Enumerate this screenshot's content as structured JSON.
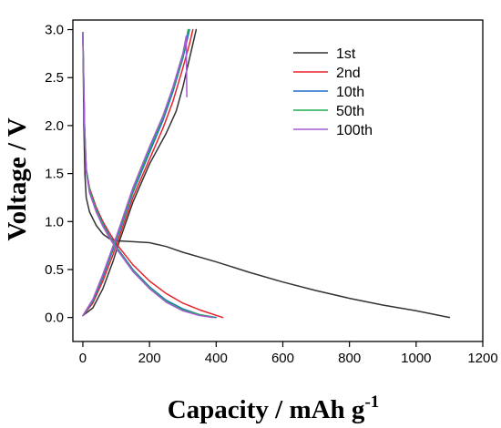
{
  "chart_data": {
    "type": "line",
    "xlabel": "Capacity / mAh g",
    "xlabel_sup": "-1",
    "ylabel": "Voltage / V",
    "xlim": [
      -30,
      1200
    ],
    "ylim": [
      -0.25,
      3.1
    ],
    "x_ticks": [
      0,
      200,
      400,
      600,
      800,
      1000,
      1200
    ],
    "y_ticks": [
      0.0,
      0.5,
      1.0,
      1.5,
      2.0,
      2.5,
      3.0
    ],
    "y_tick_labels": [
      "0.0",
      "0.5",
      "1.0",
      "1.5",
      "2.0",
      "2.5",
      "3.0"
    ],
    "grid": false,
    "legend_position": "top-right",
    "series": [
      {
        "name": "1st",
        "color": "#333333",
        "discharge": [
          [
            0,
            2.97
          ],
          [
            3,
            2.0
          ],
          [
            6,
            1.5
          ],
          [
            10,
            1.25
          ],
          [
            20,
            1.1
          ],
          [
            40,
            0.96
          ],
          [
            60,
            0.87
          ],
          [
            80,
            0.82
          ],
          [
            100,
            0.8
          ],
          [
            150,
            0.79
          ],
          [
            200,
            0.78
          ],
          [
            250,
            0.74
          ],
          [
            300,
            0.68
          ],
          [
            400,
            0.58
          ],
          [
            500,
            0.47
          ],
          [
            600,
            0.37
          ],
          [
            700,
            0.28
          ],
          [
            800,
            0.2
          ],
          [
            900,
            0.13
          ],
          [
            1000,
            0.07
          ],
          [
            1100,
            0.0
          ]
        ],
        "charge": [
          [
            0,
            0.02
          ],
          [
            30,
            0.1
          ],
          [
            60,
            0.3
          ],
          [
            90,
            0.58
          ],
          [
            110,
            0.8
          ],
          [
            150,
            1.2
          ],
          [
            200,
            1.6
          ],
          [
            250,
            1.92
          ],
          [
            280,
            2.15
          ],
          [
            300,
            2.4
          ],
          [
            320,
            2.7
          ],
          [
            340,
            3.0
          ]
        ]
      },
      {
        "name": "2nd",
        "color": "#e8232a",
        "discharge": [
          [
            0,
            2.92
          ],
          [
            5,
            2.0
          ],
          [
            10,
            1.55
          ],
          [
            20,
            1.35
          ],
          [
            40,
            1.15
          ],
          [
            60,
            1.0
          ],
          [
            80,
            0.88
          ],
          [
            100,
            0.77
          ],
          [
            150,
            0.55
          ],
          [
            200,
            0.38
          ],
          [
            250,
            0.25
          ],
          [
            300,
            0.15
          ],
          [
            350,
            0.08
          ],
          [
            420,
            0.0
          ]
        ],
        "charge": [
          [
            0,
            0.02
          ],
          [
            30,
            0.15
          ],
          [
            60,
            0.38
          ],
          [
            90,
            0.65
          ],
          [
            110,
            0.85
          ],
          [
            150,
            1.25
          ],
          [
            200,
            1.65
          ],
          [
            240,
            1.97
          ],
          [
            270,
            2.25
          ],
          [
            300,
            2.6
          ],
          [
            320,
            2.85
          ],
          [
            330,
            3.0
          ]
        ]
      },
      {
        "name": "10th",
        "color": "#1f6fd1",
        "discharge": [
          [
            0,
            2.95
          ],
          [
            5,
            2.0
          ],
          [
            10,
            1.55
          ],
          [
            20,
            1.33
          ],
          [
            40,
            1.13
          ],
          [
            60,
            0.98
          ],
          [
            80,
            0.85
          ],
          [
            100,
            0.74
          ],
          [
            150,
            0.5
          ],
          [
            200,
            0.32
          ],
          [
            250,
            0.18
          ],
          [
            300,
            0.09
          ],
          [
            350,
            0.03
          ],
          [
            400,
            0.0
          ]
        ],
        "charge": [
          [
            0,
            0.02
          ],
          [
            30,
            0.17
          ],
          [
            60,
            0.42
          ],
          [
            90,
            0.7
          ],
          [
            110,
            0.9
          ],
          [
            150,
            1.3
          ],
          [
            200,
            1.72
          ],
          [
            240,
            2.05
          ],
          [
            270,
            2.35
          ],
          [
            300,
            2.7
          ],
          [
            320,
            3.0
          ]
        ]
      },
      {
        "name": "50th",
        "color": "#1fae52",
        "discharge": [
          [
            0,
            2.95
          ],
          [
            5,
            2.0
          ],
          [
            10,
            1.55
          ],
          [
            20,
            1.33
          ],
          [
            40,
            1.12
          ],
          [
            60,
            0.97
          ],
          [
            80,
            0.84
          ],
          [
            100,
            0.73
          ],
          [
            150,
            0.49
          ],
          [
            200,
            0.31
          ],
          [
            250,
            0.17
          ],
          [
            300,
            0.08
          ],
          [
            350,
            0.03
          ],
          [
            395,
            0.0
          ]
        ],
        "charge": [
          [
            0,
            0.02
          ],
          [
            30,
            0.18
          ],
          [
            60,
            0.44
          ],
          [
            90,
            0.72
          ],
          [
            110,
            0.92
          ],
          [
            150,
            1.32
          ],
          [
            200,
            1.75
          ],
          [
            240,
            2.08
          ],
          [
            270,
            2.38
          ],
          [
            300,
            2.72
          ],
          [
            316,
            3.0
          ]
        ]
      },
      {
        "name": "100th",
        "color": "#a45bd1",
        "discharge": [
          [
            0,
            2.96
          ],
          [
            5,
            2.0
          ],
          [
            10,
            1.52
          ],
          [
            20,
            1.3
          ],
          [
            40,
            1.1
          ],
          [
            60,
            0.95
          ],
          [
            80,
            0.83
          ],
          [
            100,
            0.72
          ],
          [
            150,
            0.48
          ],
          [
            200,
            0.3
          ],
          [
            250,
            0.16
          ],
          [
            300,
            0.07
          ],
          [
            350,
            0.02
          ],
          [
            390,
            0.0
          ]
        ],
        "charge": [
          [
            0,
            0.02
          ],
          [
            30,
            0.19
          ],
          [
            60,
            0.45
          ],
          [
            90,
            0.74
          ],
          [
            110,
            0.94
          ],
          [
            150,
            1.35
          ],
          [
            200,
            1.78
          ],
          [
            240,
            2.1
          ],
          [
            270,
            2.4
          ],
          [
            300,
            2.75
          ],
          [
            310,
            2.93
          ],
          [
            312,
            2.3
          ]
        ]
      }
    ]
  }
}
